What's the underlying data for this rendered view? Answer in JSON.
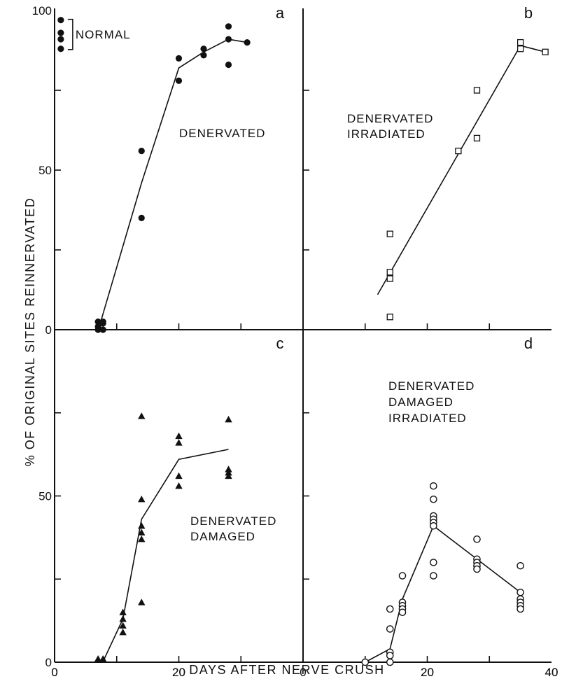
{
  "ylabel": "% OF ORIGINAL SITES REINNERVATED",
  "xlabel": "DAYS AFTER NERVE CRUSH",
  "chart_data": [
    {
      "type": "scatter",
      "panel": "a",
      "annotation": [
        "DENERVATED"
      ],
      "marker": "filled-circle",
      "xlim": [
        0,
        40
      ],
      "ylim": [
        0,
        100
      ],
      "x_ticks": [
        0,
        20
      ],
      "y_ticks": [
        0,
        50,
        100
      ],
      "x_tick_labels": [
        "0",
        "20"
      ],
      "y_tick_labels": [
        "0",
        "50",
        "100"
      ],
      "points": [
        {
          "x": 7,
          "y": 0
        },
        {
          "x": 7,
          "y": 1
        },
        {
          "x": 7.8,
          "y": 0
        },
        {
          "x": 7.8,
          "y": 2
        },
        {
          "x": 7,
          "y": 2.5
        },
        {
          "x": 7.8,
          "y": 2.5
        },
        {
          "x": 14,
          "y": 56
        },
        {
          "x": 14,
          "y": 35
        },
        {
          "x": 20,
          "y": 85
        },
        {
          "x": 20,
          "y": 78
        },
        {
          "x": 24,
          "y": 88
        },
        {
          "x": 24,
          "y": 86
        },
        {
          "x": 28,
          "y": 95
        },
        {
          "x": 28,
          "y": 91
        },
        {
          "x": 28,
          "y": 83
        },
        {
          "x": 31,
          "y": 90
        }
      ],
      "fit_line": [
        {
          "x": 7,
          "y": 0
        },
        {
          "x": 7.5,
          "y": 3
        },
        {
          "x": 14,
          "y": 46
        },
        {
          "x": 20,
          "y": 82
        },
        {
          "x": 24,
          "y": 87
        },
        {
          "x": 28,
          "y": 91
        },
        {
          "x": 31,
          "y": 90
        }
      ],
      "normal_label": "NORMAL",
      "normal_points": [
        {
          "x": 1,
          "y": 97
        },
        {
          "x": 1,
          "y": 93
        },
        {
          "x": 1,
          "y": 91
        },
        {
          "x": 1,
          "y": 88
        }
      ]
    },
    {
      "type": "scatter",
      "panel": "b",
      "annotation": [
        "DENERVATED",
        "IRRADIATED"
      ],
      "marker": "open-square",
      "xlim": [
        0,
        40
      ],
      "ylim": [
        0,
        100
      ],
      "x_ticks": [
        20,
        40
      ],
      "y_ticks": [
        50
      ],
      "x_tick_labels": [
        "20",
        "40"
      ],
      "y_tick_labels": [],
      "points": [
        {
          "x": 14,
          "y": 30
        },
        {
          "x": 14,
          "y": 18
        },
        {
          "x": 14,
          "y": 16
        },
        {
          "x": 14,
          "y": 4
        },
        {
          "x": 25,
          "y": 56
        },
        {
          "x": 28,
          "y": 75
        },
        {
          "x": 28,
          "y": 60
        },
        {
          "x": 35,
          "y": 90
        },
        {
          "x": 35,
          "y": 88
        },
        {
          "x": 39,
          "y": 87
        }
      ],
      "fit_line": [
        {
          "x": 12,
          "y": 11
        },
        {
          "x": 35,
          "y": 89
        },
        {
          "x": 39,
          "y": 87
        }
      ]
    },
    {
      "type": "scatter",
      "panel": "c",
      "annotation": [
        "DENERVATED",
        "DAMAGED"
      ],
      "marker": "filled-triangle",
      "xlim": [
        0,
        40
      ],
      "ylim": [
        0,
        100
      ],
      "x_ticks": [
        0,
        20
      ],
      "y_ticks": [
        0,
        50
      ],
      "x_tick_labels": [
        "0",
        "20"
      ],
      "y_tick_labels": [
        "0",
        "50"
      ],
      "points": [
        {
          "x": 7,
          "y": 1
        },
        {
          "x": 7.8,
          "y": 1
        },
        {
          "x": 11,
          "y": 15
        },
        {
          "x": 11,
          "y": 13
        },
        {
          "x": 11,
          "y": 11
        },
        {
          "x": 11,
          "y": 9
        },
        {
          "x": 14,
          "y": 74
        },
        {
          "x": 14,
          "y": 49
        },
        {
          "x": 14,
          "y": 41
        },
        {
          "x": 14,
          "y": 39
        },
        {
          "x": 14,
          "y": 37
        },
        {
          "x": 14,
          "y": 18
        },
        {
          "x": 20,
          "y": 68
        },
        {
          "x": 20,
          "y": 66
        },
        {
          "x": 20,
          "y": 56
        },
        {
          "x": 20,
          "y": 53
        },
        {
          "x": 28,
          "y": 73
        },
        {
          "x": 28,
          "y": 58
        },
        {
          "x": 28,
          "y": 57
        },
        {
          "x": 28,
          "y": 56
        }
      ],
      "fit_line": [
        {
          "x": 6.5,
          "y": 0
        },
        {
          "x": 8,
          "y": 1
        },
        {
          "x": 11,
          "y": 13
        },
        {
          "x": 14,
          "y": 43
        },
        {
          "x": 20,
          "y": 61
        },
        {
          "x": 28,
          "y": 64
        }
      ]
    },
    {
      "type": "scatter",
      "panel": "d",
      "annotation": [
        "DENERVATED",
        "DAMAGED",
        "IRRADIATED"
      ],
      "marker": "open-circle",
      "xlim": [
        0,
        40
      ],
      "ylim": [
        0,
        100
      ],
      "x_ticks": [
        0,
        20,
        40
      ],
      "y_ticks": [
        50
      ],
      "x_tick_labels": [
        "0",
        "20",
        "40"
      ],
      "y_tick_labels": [],
      "points": [
        {
          "x": 10,
          "y": 0
        },
        {
          "x": 14,
          "y": 16
        },
        {
          "x": 14,
          "y": 10
        },
        {
          "x": 14,
          "y": 3
        },
        {
          "x": 14,
          "y": 2
        },
        {
          "x": 14,
          "y": 0
        },
        {
          "x": 16,
          "y": 26
        },
        {
          "x": 16,
          "y": 18
        },
        {
          "x": 16,
          "y": 17
        },
        {
          "x": 16,
          "y": 16
        },
        {
          "x": 16,
          "y": 15
        },
        {
          "x": 21,
          "y": 53
        },
        {
          "x": 21,
          "y": 49
        },
        {
          "x": 21,
          "y": 44
        },
        {
          "x": 21,
          "y": 43
        },
        {
          "x": 21,
          "y": 42
        },
        {
          "x": 21,
          "y": 41
        },
        {
          "x": 21,
          "y": 30
        },
        {
          "x": 21,
          "y": 26
        },
        {
          "x": 28,
          "y": 37
        },
        {
          "x": 28,
          "y": 31
        },
        {
          "x": 28,
          "y": 30
        },
        {
          "x": 28,
          "y": 29
        },
        {
          "x": 28,
          "y": 28
        },
        {
          "x": 35,
          "y": 29
        },
        {
          "x": 35,
          "y": 21
        },
        {
          "x": 35,
          "y": 19
        },
        {
          "x": 35,
          "y": 18
        },
        {
          "x": 35,
          "y": 17
        },
        {
          "x": 35,
          "y": 16
        }
      ],
      "fit_line": [
        {
          "x": 10,
          "y": 0
        },
        {
          "x": 14,
          "y": 4
        },
        {
          "x": 16,
          "y": 19
        },
        {
          "x": 21,
          "y": 41
        },
        {
          "x": 28,
          "y": 31
        },
        {
          "x": 35,
          "y": 21
        }
      ]
    }
  ]
}
